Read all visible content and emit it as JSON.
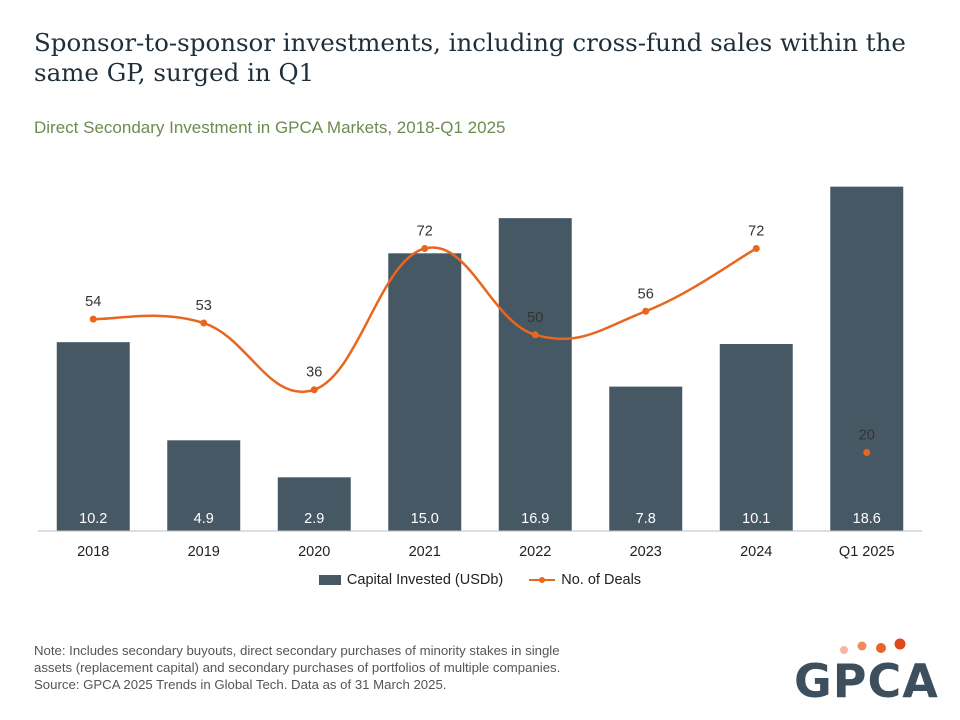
{
  "title": "Sponsor-to-sponsor investments, including cross-fund sales within the same GP, surged in Q1",
  "subtitle": "Direct Secondary Investment in GPCA Markets, 2018-Q1 2025",
  "note_lines": [
    "Note: Includes secondary buyouts, direct secondary purchases of minority stakes in single",
    "assets (replacement capital) and secondary purchases of portfolios of multiple companies.",
    "Source: GPCA 2025 Trends in Global Tech. Data as of 31 March 2025."
  ],
  "logo": {
    "text": "GPCA",
    "dot_colors": [
      "#f4b8a0",
      "#f08a5d",
      "#e8662d",
      "#e0491a"
    ]
  },
  "colors": {
    "bar": "#475865",
    "line": "#e8661e",
    "bar_label": "#ffffff",
    "text": "#333333"
  },
  "chart_data": {
    "type": "bar",
    "categories": [
      "2018",
      "2019",
      "2020",
      "2021",
      "2022",
      "2023",
      "2024",
      "Q1 2025"
    ],
    "series": [
      {
        "name": "Capital Invested (USDb)",
        "type": "bar",
        "axis": "left",
        "values": [
          10.2,
          4.9,
          2.9,
          15.0,
          16.9,
          7.8,
          10.1,
          18.6
        ],
        "labels": [
          "10.2",
          "4.9",
          "2.9",
          "15.0",
          "16.9",
          "7.8",
          "10.1",
          "18.6"
        ]
      },
      {
        "name": "No. of Deals",
        "type": "line",
        "axis": "right",
        "values": [
          54,
          53,
          36,
          72,
          50,
          56,
          72,
          20
        ],
        "labels": [
          "54",
          "53",
          "36",
          "72",
          "50",
          "56",
          "72",
          "20"
        ],
        "connected_through_index": 6
      }
    ],
    "y_left_range": [
      0,
      19.5
    ],
    "y_right_range": [
      0,
      92
    ],
    "legend": "bottom",
    "grid": false
  }
}
